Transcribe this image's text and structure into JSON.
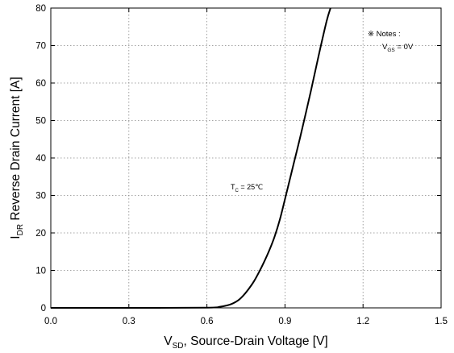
{
  "chart_data": {
    "type": "line",
    "xlabel": {
      "main": "V",
      "sub": "SD",
      "rest": ", Source-Drain Voltage [V]"
    },
    "ylabel": {
      "main": "I",
      "sub": "DR",
      "rest": " Reverse Drain Current [A]"
    },
    "xlim": [
      0.0,
      1.5
    ],
    "ylim": [
      0,
      80
    ],
    "xticks": [
      "0.0",
      "0.3",
      "0.6",
      "0.9",
      "1.2",
      "1.5"
    ],
    "yticks": [
      "0",
      "10",
      "20",
      "30",
      "40",
      "50",
      "60",
      "70",
      "80"
    ],
    "grid": true,
    "series": [
      {
        "x": [
          0.0,
          0.3,
          0.6,
          0.65,
          0.68,
          0.7,
          0.72,
          0.74,
          0.76,
          0.78,
          0.8,
          0.82,
          0.84,
          0.86,
          0.88,
          0.9,
          0.93,
          0.96,
          1.0,
          1.03,
          1.06,
          1.075
        ],
        "y": [
          0,
          0,
          0.05,
          0.3,
          0.7,
          1.2,
          2.0,
          3.3,
          5.0,
          7.0,
          9.5,
          12.3,
          15.4,
          19.0,
          23.5,
          29.0,
          37.5,
          46.0,
          58.0,
          67.5,
          76.5,
          80.0
        ],
        "color": "#000000"
      }
    ],
    "annotations": {
      "tc": {
        "main": "T",
        "sub": "C",
        "rest": " = 25℃"
      },
      "notes_title": "※ Notes :",
      "notes_vgs": {
        "main": "V",
        "sub": "GS",
        "rest": " = 0V"
      }
    }
  }
}
